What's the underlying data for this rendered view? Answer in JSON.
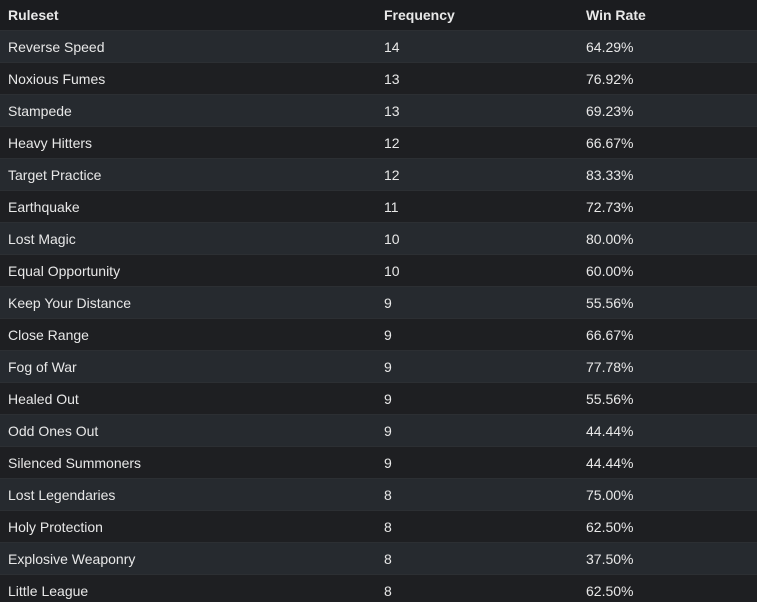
{
  "table": {
    "header": [
      "Ruleset",
      "Frequency",
      "Win Rate"
    ],
    "rows": [
      [
        "Reverse Speed",
        "14",
        "64.29%"
      ],
      [
        "Noxious Fumes",
        "13",
        "76.92%"
      ],
      [
        "Stampede",
        "13",
        "69.23%"
      ],
      [
        "Heavy Hitters",
        "12",
        "66.67%"
      ],
      [
        "Target Practice",
        "12",
        "83.33%"
      ],
      [
        "Earthquake",
        "11",
        "72.73%"
      ],
      [
        "Lost Magic",
        "10",
        "80.00%"
      ],
      [
        "Equal Opportunity",
        "10",
        "60.00%"
      ],
      [
        "Keep Your Distance",
        "9",
        "55.56%"
      ],
      [
        "Close Range",
        "9",
        "66.67%"
      ],
      [
        "Fog of War",
        "9",
        "77.78%"
      ],
      [
        "Healed Out",
        "9",
        "55.56%"
      ],
      [
        "Odd Ones Out",
        "9",
        "44.44%"
      ],
      [
        "Silenced Summoners",
        "9",
        "44.44%"
      ],
      [
        "Lost Legendaries",
        "8",
        "75.00%"
      ],
      [
        "Holy Protection",
        "8",
        "62.50%"
      ],
      [
        "Explosive Weaponry",
        "8",
        "37.50%"
      ],
      [
        "Little League",
        "8",
        "62.50%"
      ]
    ]
  }
}
